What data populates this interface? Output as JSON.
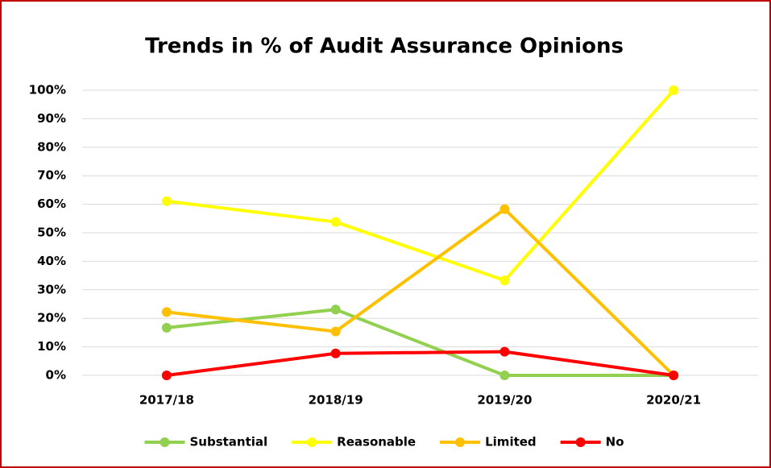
{
  "chart_data": {
    "type": "line",
    "title": "Trends in % of Audit Assurance Opinions",
    "categories": [
      "2017/18",
      "2018/19",
      "2019/20",
      "2020/21"
    ],
    "series": [
      {
        "name": "Substantial",
        "color": "#92d050",
        "values": [
          16.7,
          23.1,
          0,
          0
        ]
      },
      {
        "name": "Reasonable",
        "color": "#ffff00",
        "values": [
          61.1,
          53.8,
          33.3,
          100
        ]
      },
      {
        "name": "Limited",
        "color": "#ffc000",
        "values": [
          22.2,
          15.4,
          58.3,
          0
        ]
      },
      {
        "name": "No",
        "color": "#ff0000",
        "values": [
          0,
          7.7,
          8.3,
          0
        ]
      }
    ],
    "ylim": [
      0,
      100
    ],
    "yticks": [
      {
        "value": 0,
        "label": "0%"
      },
      {
        "value": 10,
        "label": "10%"
      },
      {
        "value": 20,
        "label": "20%"
      },
      {
        "value": 30,
        "label": "30%"
      },
      {
        "value": 40,
        "label": "40%"
      },
      {
        "value": 50,
        "label": "50%"
      },
      {
        "value": 60,
        "label": "60%"
      },
      {
        "value": 70,
        "label": "70%"
      },
      {
        "value": 80,
        "label": "80%"
      },
      {
        "value": 90,
        "label": "90%"
      },
      {
        "value": 100,
        "label": "100%"
      }
    ],
    "grid": true,
    "legend": "bottom"
  }
}
